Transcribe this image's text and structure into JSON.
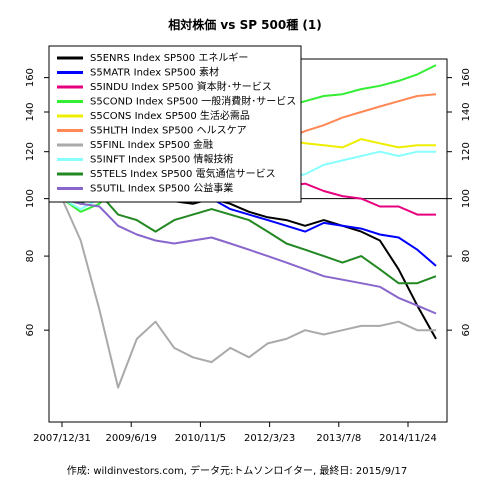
{
  "chart_data": {
    "type": "line",
    "title": "相対株価 vs SP 500種 (1)",
    "caption": "作成: wildinvestors.com, データ元:トムソンロイター, 最終日: 2015/9/17",
    "x_tick_labels": [
      "2007/12/31",
      "2009/6/19",
      "2010/11/5",
      "2012/3/23",
      "2013/7/8",
      "2014/11/24"
    ],
    "y_ticks": [
      60,
      80,
      100,
      120,
      140,
      160
    ],
    "ylim": [
      42,
      172
    ],
    "log_scale": true,
    "reference_line": 100,
    "grid": false,
    "legend_position": "top-left",
    "series": [
      {
        "name": "S5ENRS Index SP500 エネルギー",
        "color": "#000000",
        "values": [
          100,
          112,
          115,
          108,
          103,
          100,
          99,
          98,
          100,
          98,
          95,
          93,
          92,
          90,
          92,
          90,
          88,
          85,
          76,
          66,
          58
        ]
      },
      {
        "name": "S5MATR Index SP500 素材",
        "color": "#0000ff",
        "values": [
          100,
          108,
          104,
          100,
          103,
          102,
          104,
          101,
          100,
          96,
          94,
          92,
          90,
          88,
          91,
          90,
          89,
          87,
          86,
          82,
          77
        ]
      },
      {
        "name": "S5INDU Index SP500 資本財･サービス",
        "color": "#e6007e",
        "values": [
          100,
          104,
          100,
          99,
          102,
          104,
          104,
          103,
          100,
          100,
          100,
          103,
          105,
          106,
          103,
          101,
          100,
          97,
          97,
          94,
          94
        ]
      },
      {
        "name": "S5COND Index SP500 一般消費財･サービス",
        "color": "#33ee33",
        "values": [
          100,
          95,
          98,
          106,
          112,
          117,
          120,
          122,
          126,
          130,
          136,
          140,
          143,
          146,
          149,
          150,
          153,
          155,
          158,
          162,
          168
        ]
      },
      {
        "name": "S5CONS Index SP500 生活必需品",
        "color": "#eeee00",
        "values": [
          100,
          110,
          118,
          128,
          122,
          114,
          116,
          120,
          127,
          132,
          130,
          127,
          126,
          124,
          123,
          122,
          126,
          124,
          122,
          123,
          123
        ]
      },
      {
        "name": "S5HLTH Index SP500 ヘルスケア",
        "color": "#ff8855",
        "values": [
          100,
          105,
          110,
          108,
          104,
          103,
          106,
          110,
          115,
          118,
          120,
          123,
          126,
          130,
          133,
          137,
          140,
          143,
          146,
          149,
          150
        ]
      },
      {
        "name": "S5FINL Index SP500 金融",
        "color": "#aaaaaa",
        "values": [
          100,
          85,
          65,
          48,
          58,
          62,
          56,
          54,
          53,
          56,
          54,
          57,
          58,
          60,
          59,
          60,
          61,
          61,
          62,
          60,
          60
        ]
      },
      {
        "name": "S5INFT Index SP500 情報技術",
        "color": "#88ffff",
        "values": [
          100,
          96,
          100,
          110,
          116,
          118,
          116,
          114,
          118,
          114,
          110,
          106,
          108,
          110,
          114,
          116,
          118,
          120,
          118,
          120,
          120
        ]
      },
      {
        "name": "S5TELS Index SP500 電気通信サービス",
        "color": "#228822",
        "values": [
          100,
          98,
          102,
          94,
          92,
          88,
          92,
          94,
          96,
          94,
          92,
          88,
          84,
          82,
          80,
          78,
          80,
          76,
          72,
          72,
          74
        ]
      },
      {
        "name": "S5UTIL Index SP500 公益事業",
        "color": "#8866cc",
        "values": [
          100,
          98,
          97,
          90,
          87,
          85,
          84,
          85,
          86,
          84,
          82,
          80,
          78,
          76,
          74,
          73,
          72,
          71,
          68,
          66,
          64
        ]
      }
    ]
  }
}
